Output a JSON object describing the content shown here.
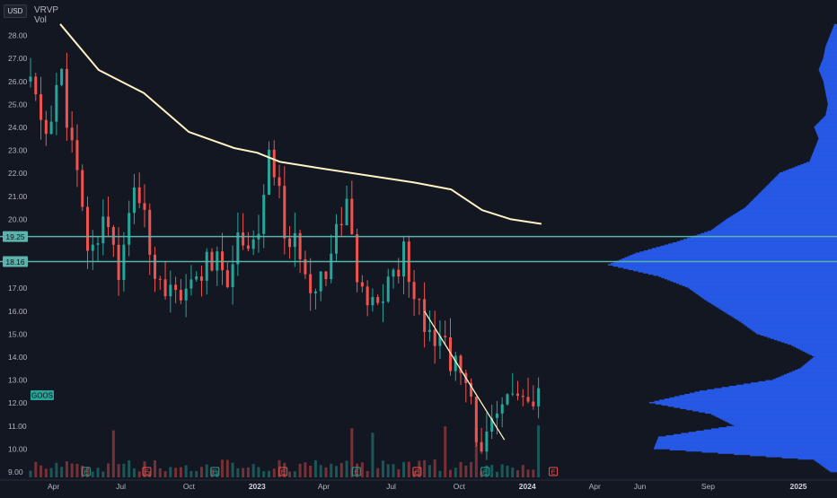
{
  "header": {
    "currency": "USD",
    "indicator_line1": "VRVP",
    "indicator_line2": "Vol"
  },
  "chart_data": {
    "type": "candlestick",
    "symbol_label": "GOOS",
    "x_tick_labels": [
      "Apr",
      "Jul",
      "Oct",
      "2023",
      "Apr",
      "Jul",
      "Oct",
      "2024",
      "Apr",
      "Jun",
      "Sep",
      "2025"
    ],
    "y_tick_labels": [
      "9.00",
      "10.00",
      "11.00",
      "12.00",
      "13.00",
      "14.00",
      "15.00",
      "16.00",
      "17.00",
      "18.00",
      "19.00",
      "20.00",
      "21.00",
      "22.00",
      "23.00",
      "24.00",
      "25.00",
      "26.00",
      "27.00",
      "28.00"
    ],
    "ylim": [
      8.7,
      28.5
    ],
    "grid": false,
    "price_levels": [
      {
        "label": "19.25",
        "value": 19.25
      },
      {
        "label": "18.16",
        "value": 18.16
      }
    ],
    "close_series": {
      "x": [
        "2022-03-01",
        "2022-03-20",
        "2022-04-10",
        "2022-05-01",
        "2022-05-20",
        "2022-06-10",
        "2022-07-01",
        "2022-07-20",
        "2022-08-10",
        "2022-09-01",
        "2022-09-20",
        "2022-10-10",
        "2022-11-01",
        "2022-11-20",
        "2022-12-10",
        "2023-01-01",
        "2023-01-20",
        "2023-02-10",
        "2023-03-01",
        "2023-03-20",
        "2023-04-10",
        "2023-05-01",
        "2023-05-20",
        "2023-06-10",
        "2023-07-01",
        "2023-07-20",
        "2023-08-10",
        "2023-09-01",
        "2023-09-20",
        "2023-10-10",
        "2023-11-01",
        "2023-11-20",
        "2023-12-10",
        "2024-01-01",
        "2024-01-20"
      ],
      "y": [
        26.0,
        23.5,
        26.5,
        22.0,
        18.2,
        20.5,
        17.5,
        21.8,
        18.5,
        17.0,
        16.0,
        17.5,
        18.2,
        17.5,
        19.5,
        19.0,
        23.0,
        19.0,
        18.5,
        17.0,
        18.5,
        21.0,
        16.5,
        16.0,
        17.5,
        18.5,
        16.0,
        15.0,
        14.0,
        12.5,
        10.0,
        11.0,
        12.8,
        11.5,
        12.3
      ]
    },
    "moving_average": {
      "x": [
        "2022-04-10",
        "2022-06-01",
        "2022-08-01",
        "2022-10-01",
        "2022-12-01",
        "2023-01-01",
        "2023-02-01",
        "2023-04-01",
        "2023-06-01",
        "2023-08-01",
        "2023-09-20",
        "2023-11-01",
        "2023-12-10",
        "2024-01-20"
      ],
      "y": [
        28.5,
        26.5,
        25.5,
        23.8,
        23.1,
        22.9,
        22.5,
        22.2,
        21.9,
        21.6,
        21.3,
        20.4,
        20.0,
        19.8
      ]
    },
    "trendline": {
      "x": [
        "2023-08-15",
        "2023-12-01"
      ],
      "y": [
        16.0,
        10.4
      ]
    },
    "earnings_markers": [
      {
        "date": "2022-05-15",
        "label": "E"
      },
      {
        "date": "2022-08-05",
        "label": "E"
      },
      {
        "date": "2022-11-05",
        "label": "E"
      },
      {
        "date": "2023-02-05",
        "label": "E"
      },
      {
        "date": "2023-05-15",
        "label": "E"
      },
      {
        "date": "2023-08-05",
        "label": "E"
      },
      {
        "date": "2023-11-05",
        "label": "E"
      },
      {
        "date": "2024-02-05",
        "label": "E"
      }
    ],
    "volume_profile": {
      "prices": [
        9.0,
        9.5,
        10.0,
        10.5,
        11.0,
        11.5,
        12.0,
        12.5,
        13.0,
        13.5,
        14.0,
        14.5,
        15.0,
        15.5,
        16.0,
        16.5,
        17.0,
        17.5,
        18.0,
        18.5,
        19.0,
        19.5,
        20.0,
        20.5,
        21.0,
        21.5,
        22.0,
        22.5,
        23.0,
        23.5,
        24.0,
        24.5,
        25.0,
        25.5,
        26.0,
        26.5,
        27.0,
        27.5,
        28.0,
        28.5
      ],
      "relative_volume": [
        0.03,
        0.1,
        0.8,
        0.78,
        0.45,
        0.55,
        0.82,
        0.6,
        0.28,
        0.16,
        0.1,
        0.2,
        0.35,
        0.42,
        0.5,
        0.58,
        0.65,
        0.78,
        1.0,
        0.88,
        0.7,
        0.55,
        0.48,
        0.4,
        0.35,
        0.3,
        0.25,
        0.12,
        0.1,
        0.08,
        0.1,
        0.05,
        0.04,
        0.05,
        0.06,
        0.08,
        0.06,
        0.05,
        0.03,
        0.01
      ]
    },
    "colors": {
      "background": "#131722",
      "up": "#26a69a",
      "down": "#ef5350",
      "moving_average": "#fff3c4",
      "level_line": "#5ab4ac",
      "profile": "#2962ff",
      "earnings_up": "#26a69a",
      "earnings_down": "#ef5350",
      "axis_text": "#b2b5be"
    }
  }
}
